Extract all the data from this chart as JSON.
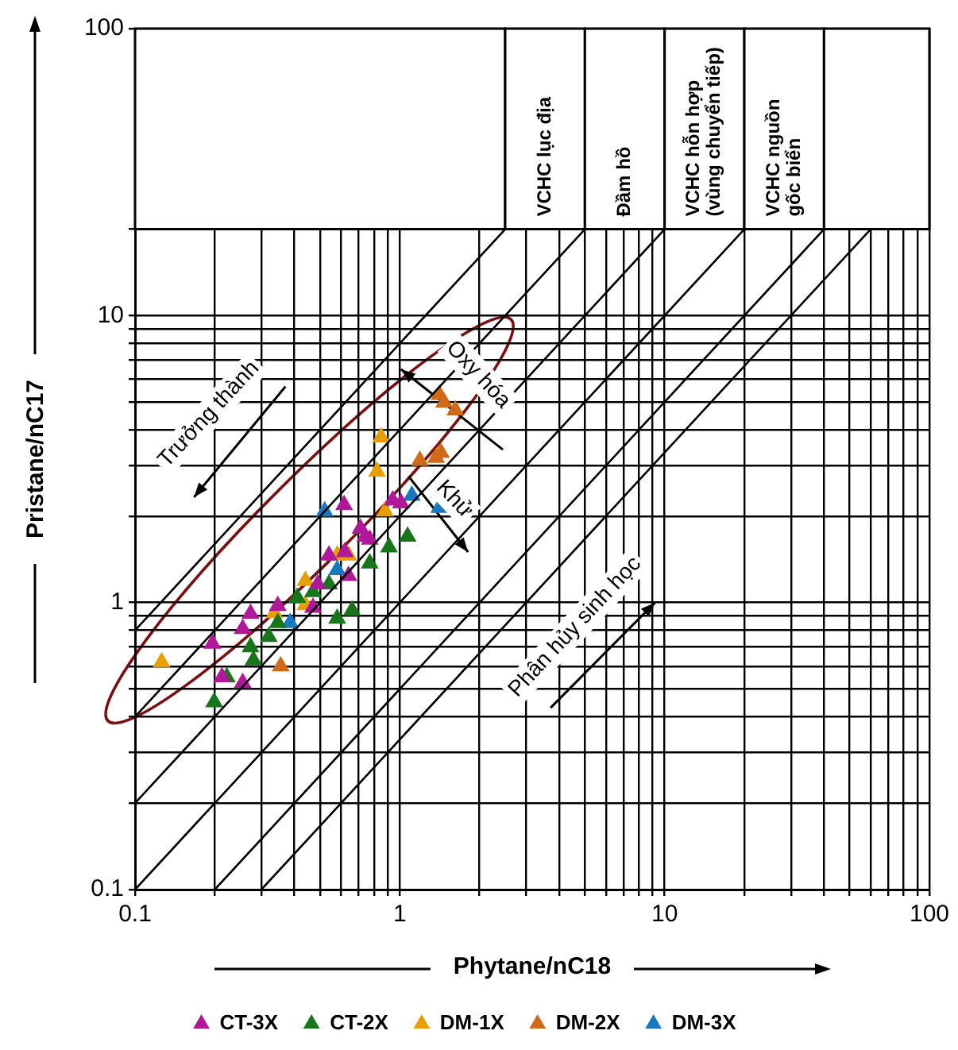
{
  "chart_data": {
    "type": "scatter",
    "xlabel": "Phytane/nC18",
    "ylabel": "Pristane/nC17",
    "log": "xy",
    "grid": true,
    "legend": "bottom",
    "marker": "triangle",
    "xlim": [
      0.1,
      100
    ],
    "ylim": [
      0.1,
      100
    ],
    "xticks": [
      0.1,
      {
        "value": 0.2,
        "label": null
      },
      {
        "value": 0.3,
        "label": null
      },
      {
        "value": 0.4,
        "label": null
      },
      {
        "value": 0.5,
        "label": null
      },
      {
        "value": 0.6,
        "label": null
      },
      {
        "value": 0.7,
        "label": null
      },
      {
        "value": 0.8,
        "label": null
      },
      {
        "value": 0.9,
        "label": null
      },
      1,
      {
        "value": 2,
        "label": null
      },
      {
        "value": 3,
        "label": null
      },
      {
        "value": 4,
        "label": null
      },
      {
        "value": 5,
        "label": null
      },
      {
        "value": 6,
        "label": null
      },
      {
        "value": 7,
        "label": null
      },
      {
        "value": 8,
        "label": null
      },
      {
        "value": 9,
        "label": null
      },
      10,
      {
        "value": 20,
        "label": null
      },
      {
        "value": 30,
        "label": null
      },
      {
        "value": 40,
        "label": null
      },
      {
        "value": 50,
        "label": null
      },
      {
        "value": 60,
        "label": null
      },
      {
        "value": 70,
        "label": null
      },
      {
        "value": 80,
        "label": null
      },
      {
        "value": 90,
        "label": null
      },
      100
    ],
    "yticks": [
      0.1,
      {
        "value": 0.2,
        "label": null
      },
      {
        "value": 0.3,
        "label": null
      },
      {
        "value": 0.4,
        "label": null
      },
      {
        "value": 0.5,
        "label": null
      },
      {
        "value": 0.6,
        "label": null
      },
      {
        "value": 0.7,
        "label": null
      },
      {
        "value": 0.8,
        "label": null
      },
      {
        "value": 0.9,
        "label": null
      },
      1,
      {
        "value": 2,
        "label": null
      },
      {
        "value": 3,
        "label": null
      },
      {
        "value": 4,
        "label": null
      },
      {
        "value": 5,
        "label": null
      },
      {
        "value": 6,
        "label": null
      },
      {
        "value": 7,
        "label": null
      },
      {
        "value": 8,
        "label": null
      },
      {
        "value": 9,
        "label": null
      },
      10,
      {
        "value": 20,
        "label": null
      },
      100
    ],
    "bands": [
      {
        "axis": "x",
        "from": 0.1,
        "to": 2.5,
        "label": null,
        "color": "#ffffff"
      },
      {
        "axis": "x",
        "from": 2.5,
        "to": 5,
        "label": "VCHC lục địa",
        "color": "#ffffff"
      },
      {
        "axis": "x",
        "from": 5,
        "to": 10,
        "label": "Đầm hồ",
        "color": "#ffffff"
      },
      {
        "axis": "x",
        "from": 10,
        "to": 20,
        "label": "VCHC hỗn hợp\n(vùng chuyển tiếp)",
        "color": "#ffffff"
      },
      {
        "axis": "x",
        "from": 20,
        "to": 40,
        "label": "VCHC nguồn\ngốc biển",
        "color": "#ffffff"
      },
      {
        "axis": "x",
        "from": 40,
        "to": 100,
        "label": null,
        "color": "#ffffff"
      }
    ],
    "annotations": [
      "Trưởng thành",
      "Oxy hóa",
      "Khử",
      "Phân hủy sinh học"
    ],
    "series": [
      {
        "type": "line",
        "color": "#000000",
        "marker": "none",
        "x": [
          0.1,
          2.5
        ],
        "values": [
          0.8,
          20
        ]
      },
      {
        "type": "line",
        "color": "#000000",
        "marker": "none",
        "x": [
          0.1,
          5
        ],
        "values": [
          0.4,
          20
        ]
      },
      {
        "type": "line",
        "color": "#000000",
        "marker": "none",
        "x": [
          0.1,
          10
        ],
        "values": [
          0.2,
          20
        ]
      },
      {
        "type": "line",
        "color": "#000000",
        "marker": "none",
        "x": [
          0.1,
          20
        ],
        "values": [
          0.1,
          20
        ]
      },
      {
        "type": "line",
        "color": "#000000",
        "marker": "none",
        "x": [
          0.2,
          40
        ],
        "values": [
          0.1,
          20
        ]
      },
      {
        "type": "line",
        "color": "#000000",
        "marker": "none",
        "x": [
          0.3,
          60
        ],
        "values": [
          0.1,
          20
        ]
      },
      {
        "name": "CT-3X",
        "color": "#b0189a",
        "x": [
          0.196,
          0.273,
          0.255,
          0.346,
          0.213,
          0.255,
          0.616,
          0.94,
          1.01,
          0.71,
          0.74,
          0.77,
          0.54,
          0.62,
          0.64,
          0.49,
          0.47
        ],
        "values": [
          0.72,
          0.915,
          0.81,
          0.975,
          0.55,
          0.525,
          2.19,
          2.27,
          2.22,
          1.81,
          1.7,
          1.66,
          1.46,
          1.5,
          1.24,
          1.16,
          0.96
        ]
      },
      {
        "name": "CT-2X",
        "color": "#17751a",
        "x": [
          0.199,
          0.222,
          0.273,
          0.28,
          0.32,
          0.346,
          0.41,
          0.47,
          0.54,
          0.58,
          0.66,
          0.77,
          0.91,
          1.07
        ],
        "values": [
          0.45,
          0.55,
          0.7,
          0.63,
          0.76,
          0.85,
          1.04,
          1.09,
          1.16,
          0.88,
          0.94,
          1.37,
          1.56,
          1.7
        ]
      },
      {
        "name": "DM-1X",
        "color": "#e8a000",
        "x": [
          0.126,
          0.336,
          0.44,
          0.58,
          0.85,
          0.82,
          0.88,
          0.64,
          0.44
        ],
        "values": [
          0.62,
          0.92,
          1.19,
          1.46,
          3.77,
          2.86,
          2.08,
          1.46,
          0.98
        ]
      },
      {
        "name": "DM-2X",
        "color": "#d06a18",
        "x": [
          0.355,
          1.41,
          1.47,
          1.62,
          1.19,
          1.37,
          1.43
        ],
        "values": [
          0.6,
          5.3,
          4.98,
          4.68,
          3.12,
          3.2,
          3.33
        ]
      },
      {
        "name": "DM-3X",
        "color": "#1878c0",
        "x": [
          0.52,
          1.11,
          1.41,
          0.58,
          0.385
        ],
        "values": [
          2.08,
          2.36,
          2.14,
          1.3,
          0.85
        ]
      }
    ]
  }
}
